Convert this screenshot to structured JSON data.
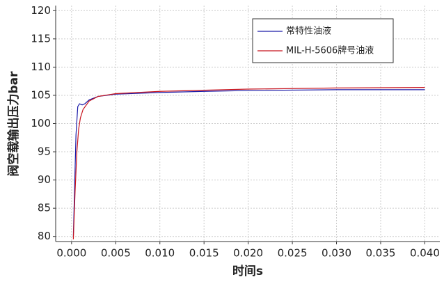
{
  "chart_data": {
    "type": "line",
    "xlabel": "时间s",
    "ylabel": "阀空载输出压力bar",
    "xlim": [
      -0.0018,
      0.0417
    ],
    "ylim": [
      79.1,
      120.9
    ],
    "xticks": [
      {
        "value": 0,
        "label": "0.000"
      },
      {
        "value": 0.005,
        "label": "0.005"
      },
      {
        "value": 0.01,
        "label": "0.010"
      },
      {
        "value": 0.015,
        "label": "0.015"
      },
      {
        "value": 0.02,
        "label": "0.020"
      },
      {
        "value": 0.025,
        "label": "0.025"
      },
      {
        "value": 0.03,
        "label": "0.030"
      },
      {
        "value": 0.035,
        "label": "0.035"
      },
      {
        "value": 0.04,
        "label": "0.040"
      }
    ],
    "yticks": [
      80,
      85,
      90,
      95,
      100,
      105,
      110,
      115,
      120
    ],
    "grid": true,
    "legend": "upper right",
    "series": [
      {
        "name": "常特性油液",
        "color": "#1a1aa8",
        "x": [
          0.0002,
          0.0003,
          0.0005,
          0.0007,
          0.0009,
          0.0012,
          0.0015,
          0.002,
          0.003,
          0.005,
          0.01,
          0.015,
          0.02,
          0.03,
          0.04
        ],
        "values": [
          80,
          86,
          98,
          103,
          103.5,
          103.3,
          103.5,
          104.2,
          104.8,
          105.2,
          105.5,
          105.7,
          105.85,
          106.0,
          106.0
        ]
      },
      {
        "name": "MIL-H-5606牌号油液",
        "color": "#c8141e",
        "x": [
          0.0002,
          0.0004,
          0.0006,
          0.0008,
          0.001,
          0.0013,
          0.002,
          0.003,
          0.005,
          0.01,
          0.015,
          0.02,
          0.03,
          0.04
        ],
        "values": [
          79.5,
          88,
          95,
          99,
          101,
          102.5,
          104,
          104.8,
          105.3,
          105.7,
          105.9,
          106.1,
          106.3,
          106.4
        ]
      }
    ]
  }
}
